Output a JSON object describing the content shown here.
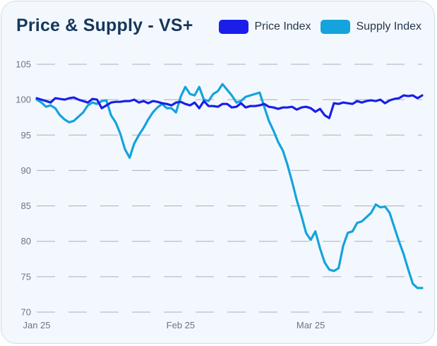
{
  "chart_data": {
    "type": "line",
    "title": "Price & Supply - VS+",
    "xlabel": "",
    "ylabel": "",
    "ylim": [
      70,
      105
    ],
    "yticks": [
      70,
      75,
      80,
      85,
      90,
      95,
      100,
      105
    ],
    "xticks": [
      {
        "label": "Jan 25",
        "index": 0
      },
      {
        "label": "Feb 25",
        "index": 31
      },
      {
        "label": "Mar 25",
        "index": 59
      }
    ],
    "grid": true,
    "legend": "top-right",
    "series": [
      {
        "name": "Price Index",
        "color": "#1a1ee8",
        "values": [
          100.2,
          100.0,
          99.8,
          99.6,
          100.2,
          100.1,
          100.0,
          100.2,
          100.3,
          100.0,
          99.8,
          99.6,
          100.1,
          100.0,
          98.8,
          99.2,
          99.6,
          99.7,
          99.7,
          99.8,
          99.8,
          100.0,
          99.6,
          99.8,
          99.5,
          99.8,
          99.7,
          99.5,
          99.4,
          99.2,
          99.6,
          99.7,
          99.4,
          99.2,
          99.6,
          98.8,
          99.8,
          99.1,
          99.1,
          99.0,
          99.4,
          99.4,
          98.9,
          99.0,
          99.5,
          98.9,
          99.1,
          99.1,
          99.2,
          99.4,
          99.0,
          98.9,
          98.7,
          98.9,
          98.9,
          99.0,
          98.6,
          98.9,
          99.0,
          98.8,
          98.3,
          98.7,
          97.8,
          97.4,
          99.5,
          99.4,
          99.6,
          99.5,
          99.4,
          99.8,
          99.6,
          99.8,
          99.9,
          99.8,
          100.0,
          99.5,
          99.9,
          100.1,
          100.2,
          100.6,
          100.5,
          100.6,
          100.2,
          100.6
        ]
      },
      {
        "name": "Supply Index",
        "color": "#14a3dc",
        "values": [
          100.0,
          99.6,
          99.0,
          99.2,
          98.8,
          97.8,
          97.2,
          96.8,
          97.0,
          97.6,
          98.2,
          99.2,
          99.6,
          99.4,
          99.8,
          99.9,
          97.8,
          96.8,
          95.2,
          93.0,
          91.8,
          93.8,
          95.0,
          96.0,
          97.2,
          98.2,
          98.9,
          99.4,
          98.8,
          98.8,
          98.2,
          100.4,
          101.8,
          100.8,
          100.6,
          101.8,
          100.0,
          99.8,
          100.8,
          101.2,
          102.2,
          101.4,
          100.6,
          99.6,
          99.8,
          100.4,
          100.6,
          100.8,
          101.0,
          99.0,
          97.0,
          95.6,
          94.0,
          92.8,
          90.8,
          88.4,
          85.8,
          83.6,
          81.2,
          80.2,
          81.4,
          79.0,
          77.0,
          76.0,
          75.8,
          76.2,
          79.4,
          81.2,
          81.4,
          82.6,
          82.8,
          83.4,
          84.0,
          85.2,
          84.8,
          84.9,
          84.0,
          82.0,
          80.0,
          78.2,
          76.0,
          74.0,
          73.4,
          73.4
        ]
      }
    ]
  }
}
